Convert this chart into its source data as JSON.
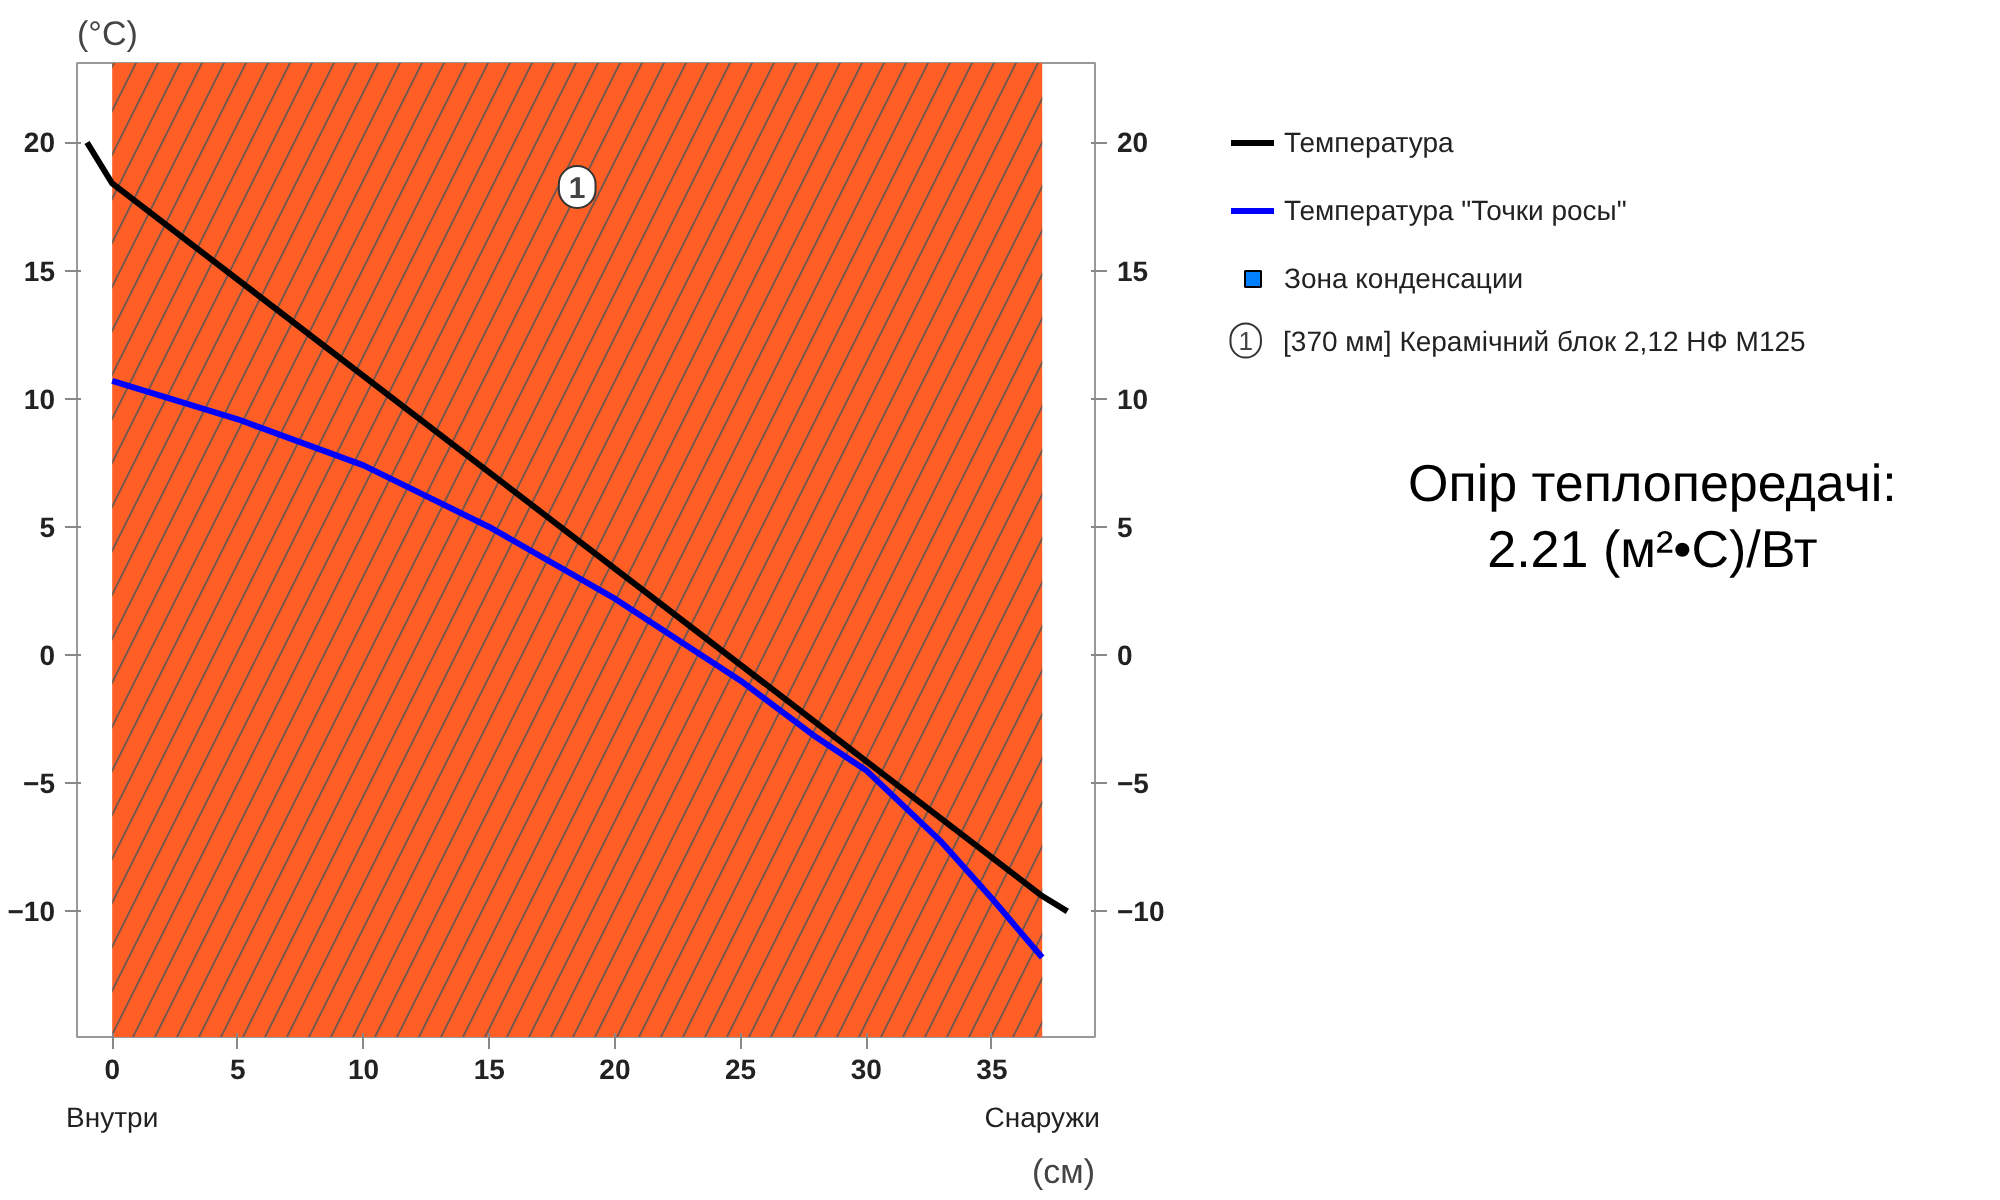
{
  "chart_data": {
    "type": "line",
    "xlabel": "(см)",
    "ylabel": "(°C)",
    "xlim": [
      -1.4,
      39.1
    ],
    "xticks": [
      0,
      5,
      10,
      15,
      20,
      25,
      30,
      35
    ],
    "ylim": [
      -14.9,
      23.1
    ],
    "yticks": [
      -10,
      -5,
      0,
      5,
      10,
      15,
      20
    ],
    "y2lim": [
      -14.9,
      23.1
    ],
    "y2ticks": [
      -10,
      -5,
      0,
      5,
      10,
      15,
      20
    ],
    "series": [
      {
        "name": "Температура",
        "color": "#000000",
        "x": [
          -1,
          0,
          37,
          38
        ],
        "values": [
          20,
          18.4,
          -9.4,
          -10
        ]
      },
      {
        "name": "Температура \"Точки росы\"",
        "color": "#0000ff",
        "x": [
          0,
          5,
          10,
          15,
          20,
          25,
          28,
          30,
          33,
          35,
          37
        ],
        "values": [
          10.7,
          9.2,
          7.4,
          5.0,
          2.2,
          -1.0,
          -3.2,
          -4.5,
          -7.3,
          -9.5,
          -11.8
        ]
      },
      {
        "name": "Зона конденсации",
        "type": "area",
        "color": "#0080ff"
      }
    ],
    "bands": [
      {
        "axis": "x",
        "from": 0,
        "to": 37,
        "label": "1",
        "color": "#ff5f25"
      }
    ],
    "annotations": [
      "[370 мм] Керамічний блок 2,12 НФ М125",
      "Опір теплопередачі:\n2.21 (м²•С)/Вт",
      "Внутри",
      "Снаружи"
    ],
    "legend": "right",
    "grid": false,
    "line_style": "solid",
    "marker": "none"
  }
}
